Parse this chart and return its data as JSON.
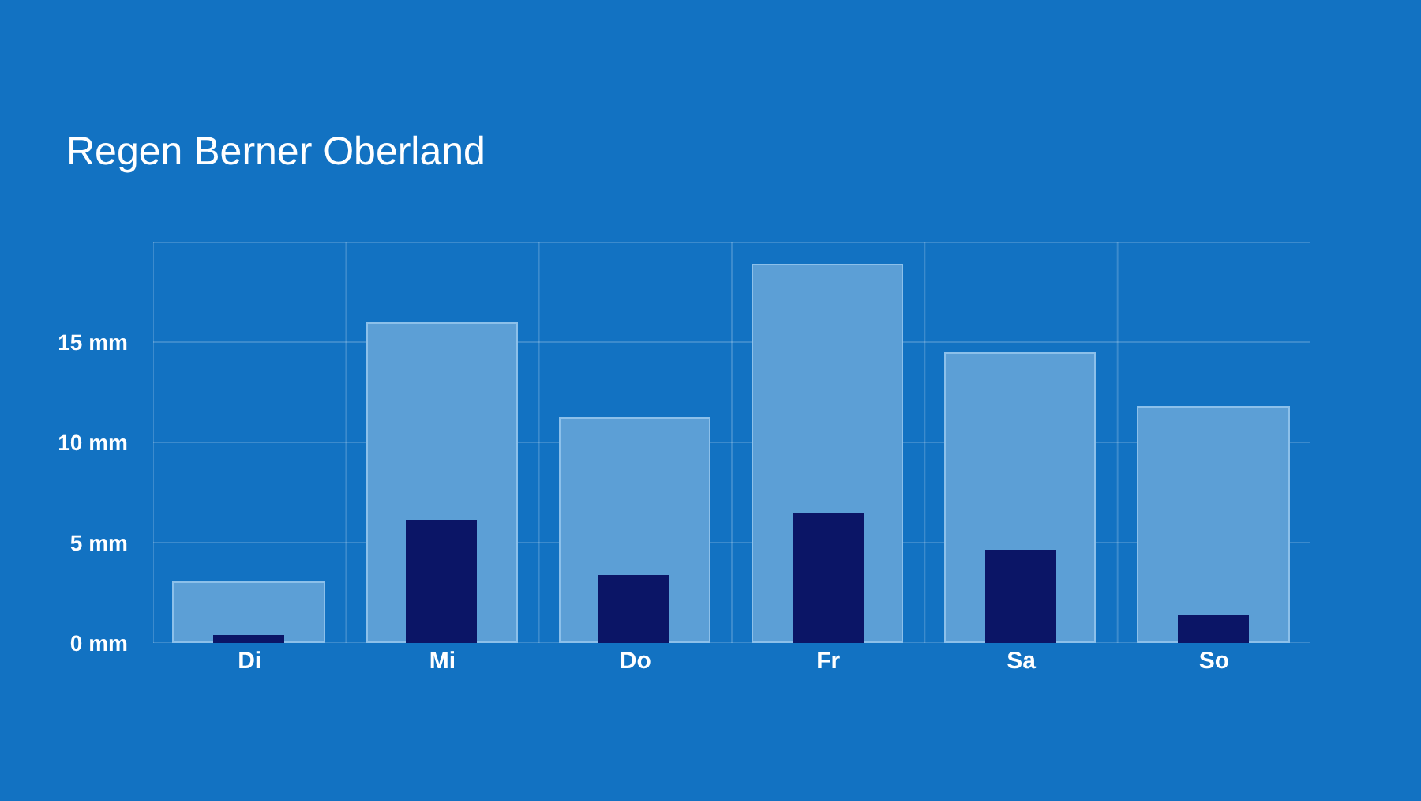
{
  "chart_data": {
    "type": "bar",
    "title": "Regen Berner Oberland",
    "categories": [
      "Di",
      "Mi",
      "Do",
      "Fr",
      "Sa",
      "So"
    ],
    "series": [
      {
        "color": "#5c9fd6",
        "values": [
          3.0,
          15.9,
          11.2,
          18.8,
          14.4,
          11.7
        ]
      },
      {
        "color": "#0b1566",
        "values": [
          0.3,
          6.1,
          3.3,
          6.4,
          4.6,
          1.3
        ]
      }
    ],
    "ylim": [
      0,
      20
    ],
    "yticks": [
      {
        "value": 0,
        "label": "0 mm"
      },
      {
        "value": 5,
        "label": "5 mm"
      },
      {
        "value": 10,
        "label": "10 mm"
      },
      {
        "value": 15,
        "label": "15 mm"
      },
      {
        "value": 20,
        "label": null
      }
    ],
    "grid": true
  }
}
